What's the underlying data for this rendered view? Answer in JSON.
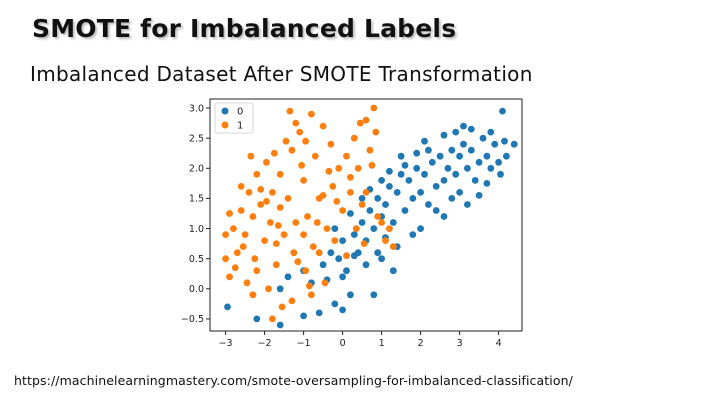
{
  "slide": {
    "title": "SMOTE for Imbalanced Labels",
    "subtitle": "Imbalanced Dataset After SMOTE Transformation",
    "source_url": "https://machinelearningmastery.com/smote-oversampling-for-imbalanced-classification/"
  },
  "chart_data": {
    "type": "scatter",
    "title": "",
    "xlabel": "",
    "ylabel": "",
    "xlim": [
      -3.4,
      4.6
    ],
    "ylim": [
      -0.7,
      3.15
    ],
    "x_ticks": [
      -3,
      -2,
      -1,
      0,
      1,
      2,
      3,
      4
    ],
    "y_ticks": [
      -0.5,
      0.0,
      0.5,
      1.0,
      1.5,
      2.0,
      2.5,
      3.0
    ],
    "y_tick_labels": [
      "−0.5",
      "0.0",
      "0.5",
      "1.0",
      "1.5",
      "2.0",
      "2.5",
      "3.0"
    ],
    "x_tick_labels": [
      "−3",
      "−2",
      "−1",
      "0",
      "1",
      "2",
      "3",
      "4"
    ],
    "grid": false,
    "legend": "top-left",
    "series": [
      {
        "name": "0",
        "color": "#1f77b4",
        "points": [
          [
            -2.95,
            -0.3
          ],
          [
            -2.2,
            -0.5
          ],
          [
            -1.6,
            -0.6
          ],
          [
            -1.0,
            -0.45
          ],
          [
            -0.6,
            -0.4
          ],
          [
            -0.2,
            -0.25
          ],
          [
            0.2,
            -0.1
          ],
          [
            -1.4,
            0.2
          ],
          [
            -1.0,
            0.3
          ],
          [
            -0.8,
            0.1
          ],
          [
            -0.5,
            0.4
          ],
          [
            -0.3,
            0.6
          ],
          [
            -0.1,
            0.5
          ],
          [
            0.0,
            0.8
          ],
          [
            0.1,
            0.3
          ],
          [
            0.3,
            0.9
          ],
          [
            0.4,
            0.6
          ],
          [
            0.5,
            1.1
          ],
          [
            0.6,
            0.8
          ],
          [
            0.7,
            1.3
          ],
          [
            0.8,
            1.0
          ],
          [
            0.9,
            1.5
          ],
          [
            1.0,
            1.2
          ],
          [
            1.1,
            1.4
          ],
          [
            1.2,
            1.7
          ],
          [
            1.3,
            1.1
          ],
          [
            1.4,
            1.6
          ],
          [
            1.5,
            1.9
          ],
          [
            1.6,
            1.3
          ],
          [
            1.7,
            1.8
          ],
          [
            1.8,
            1.5
          ],
          [
            1.9,
            2.0
          ],
          [
            2.0,
            1.6
          ],
          [
            2.1,
            1.9
          ],
          [
            2.2,
            1.4
          ],
          [
            2.3,
            2.1
          ],
          [
            2.4,
            1.7
          ],
          [
            2.5,
            2.2
          ],
          [
            2.6,
            1.8
          ],
          [
            2.7,
            2.0
          ],
          [
            2.8,
            2.3
          ],
          [
            2.9,
            1.9
          ],
          [
            3.0,
            2.2
          ],
          [
            3.1,
            2.4
          ],
          [
            3.2,
            2.0
          ],
          [
            3.3,
            2.3
          ],
          [
            3.4,
            1.8
          ],
          [
            3.5,
            2.1
          ],
          [
            3.6,
            2.5
          ],
          [
            3.7,
            2.2
          ],
          [
            3.8,
            2.0
          ],
          [
            3.9,
            2.4
          ],
          [
            4.0,
            2.1
          ],
          [
            4.15,
            2.45
          ],
          [
            4.4,
            2.4
          ],
          [
            4.1,
            2.95
          ],
          [
            3.1,
            2.7
          ],
          [
            2.9,
            2.6
          ],
          [
            2.2,
            2.3
          ],
          [
            1.9,
            2.25
          ],
          [
            1.5,
            2.2
          ],
          [
            0.9,
            0.6
          ],
          [
            1.4,
            0.7
          ],
          [
            2.0,
            1.0
          ],
          [
            2.6,
            1.2
          ],
          [
            3.2,
            1.4
          ],
          [
            0.0,
            0.2
          ],
          [
            0.6,
            0.4
          ],
          [
            1.0,
            0.5
          ],
          [
            1.8,
            0.9
          ],
          [
            -1.6,
            0.0
          ],
          [
            -0.4,
            0.15
          ],
          [
            0.3,
            0.55
          ],
          [
            1.1,
            0.85
          ],
          [
            2.4,
            1.3
          ],
          [
            3.0,
            1.6
          ],
          [
            3.7,
            1.75
          ],
          [
            0.8,
            -0.1
          ],
          [
            0.0,
            -0.35
          ],
          [
            0.5,
            1.5
          ],
          [
            1.0,
            1.8
          ],
          [
            1.6,
            2.05
          ],
          [
            2.1,
            2.45
          ],
          [
            2.6,
            2.55
          ],
          [
            3.3,
            2.65
          ],
          [
            3.8,
            2.6
          ],
          [
            4.2,
            2.2
          ],
          [
            -0.2,
            1.0
          ],
          [
            0.2,
            1.25
          ],
          [
            0.7,
            1.65
          ],
          [
            1.2,
            1.95
          ],
          [
            2.8,
            1.5
          ],
          [
            3.5,
            1.55
          ],
          [
            4.05,
            1.9
          ],
          [
            1.3,
            0.3
          ]
        ]
      },
      {
        "name": "1",
        "color": "#ff7f0e",
        "points": [
          [
            -3.0,
            0.9
          ],
          [
            -3.0,
            0.5
          ],
          [
            -2.9,
            0.2
          ],
          [
            -2.8,
            1.0
          ],
          [
            -2.7,
            0.6
          ],
          [
            -2.6,
            1.3
          ],
          [
            -2.5,
            0.9
          ],
          [
            -2.45,
            0.1
          ],
          [
            -2.4,
            1.6
          ],
          [
            -2.3,
            1.2
          ],
          [
            -2.25,
            0.5
          ],
          [
            -2.2,
            1.9
          ],
          [
            -2.1,
            1.4
          ],
          [
            -2.0,
            0.8
          ],
          [
            -1.95,
            2.1
          ],
          [
            -1.9,
            0.0
          ],
          [
            -1.85,
            1.1
          ],
          [
            -1.8,
            1.6
          ],
          [
            -1.7,
            0.4
          ],
          [
            -1.6,
            1.9
          ],
          [
            -1.55,
            -0.3
          ],
          [
            -1.5,
            0.9
          ],
          [
            -1.4,
            1.5
          ],
          [
            -1.3,
            2.3
          ],
          [
            -1.25,
            0.6
          ],
          [
            -1.2,
            1.1
          ],
          [
            -1.1,
            2.6
          ],
          [
            -1.0,
            1.8
          ],
          [
            -0.95,
            0.3
          ],
          [
            -0.9,
            1.2
          ],
          [
            -0.8,
            2.9
          ],
          [
            -0.75,
            0.7
          ],
          [
            -0.7,
            2.2
          ],
          [
            -0.6,
            1.5
          ],
          [
            -0.5,
            2.7
          ],
          [
            -0.45,
            0.1
          ],
          [
            -0.4,
            1.0
          ],
          [
            -0.3,
            2.4
          ],
          [
            -0.25,
            1.7
          ],
          [
            -0.2,
            0.8
          ],
          [
            -0.1,
            2.0
          ],
          [
            0.0,
            1.3
          ],
          [
            0.1,
            2.2
          ],
          [
            0.2,
            1.6
          ],
          [
            0.3,
            2.5
          ],
          [
            0.35,
            1.0
          ],
          [
            0.4,
            2.0
          ],
          [
            0.5,
            1.4
          ],
          [
            0.6,
            2.8
          ],
          [
            0.7,
            2.3
          ],
          [
            0.8,
            3.0
          ],
          [
            0.85,
            2.6
          ],
          [
            0.9,
            1.2
          ],
          [
            1.0,
            1.1
          ],
          [
            1.1,
            0.8
          ],
          [
            1.2,
            1.0
          ],
          [
            1.3,
            0.7
          ],
          [
            -2.6,
            1.7
          ],
          [
            -2.1,
            1.65
          ],
          [
            -1.6,
            1.35
          ],
          [
            -1.0,
            0.9
          ],
          [
            -0.5,
            1.55
          ],
          [
            0.2,
            1.85
          ],
          [
            0.6,
            1.6
          ],
          [
            -1.35,
            2.95
          ],
          [
            -1.2,
            2.75
          ],
          [
            -1.45,
            2.45
          ],
          [
            -2.3,
            -0.1
          ],
          [
            -1.8,
            -0.5
          ],
          [
            -1.3,
            -0.2
          ],
          [
            -0.8,
            -0.1
          ],
          [
            -2.75,
            0.35
          ],
          [
            -2.2,
            0.3
          ],
          [
            -1.7,
            0.75
          ],
          [
            -1.15,
            0.45
          ],
          [
            -0.6,
            0.6
          ],
          [
            0.1,
            0.55
          ],
          [
            0.55,
            0.75
          ],
          [
            -2.9,
            1.25
          ],
          [
            -2.35,
            2.2
          ],
          [
            -1.75,
            2.25
          ],
          [
            -1.05,
            2.05
          ],
          [
            -0.35,
            1.95
          ],
          [
            0.45,
            2.75
          ],
          [
            0.75,
            2.05
          ],
          [
            -0.65,
            1.1
          ],
          [
            -0.15,
            1.45
          ],
          [
            -0.85,
            0.05
          ],
          [
            -1.65,
            1.05
          ],
          [
            -2.55,
            0.7
          ],
          [
            -1.95,
            1.45
          ],
          [
            -0.95,
            2.45
          ]
        ]
      }
    ]
  }
}
